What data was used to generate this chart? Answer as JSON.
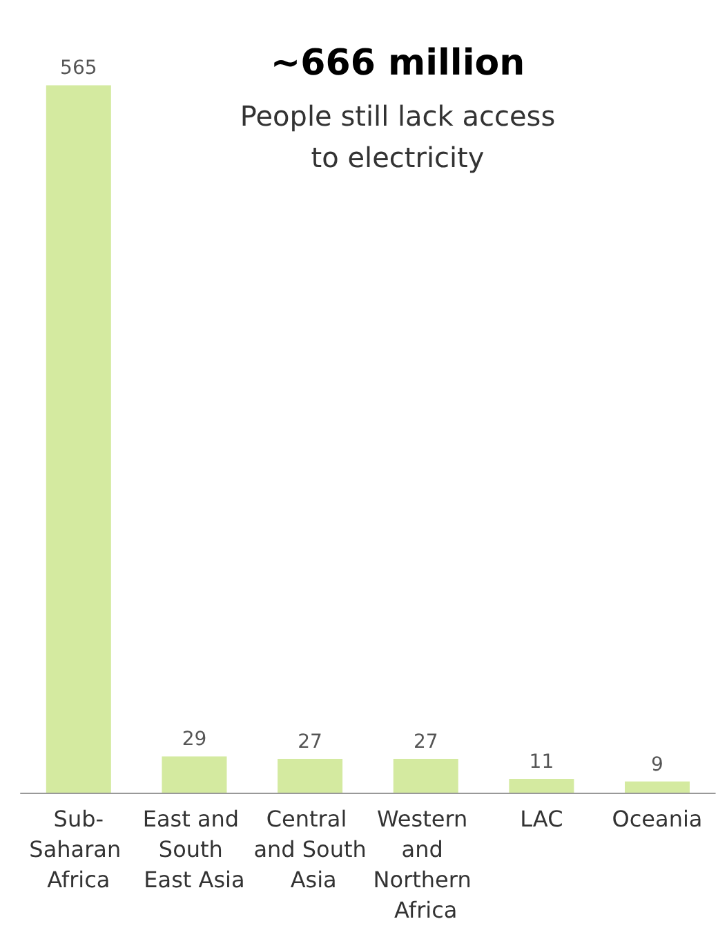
{
  "chart_data": {
    "type": "bar",
    "title": "~666 million",
    "subtitle": "People still lack access\nto electricity",
    "categories": [
      "Sub-Saharan Africa",
      "East and South East Asia",
      "Central and South Asia",
      "Western and Northern Africa",
      "LAC",
      "Oceania"
    ],
    "values": [
      565,
      29,
      27,
      27,
      11,
      9
    ],
    "color": "#d4eaa0",
    "data_labels": true
  }
}
